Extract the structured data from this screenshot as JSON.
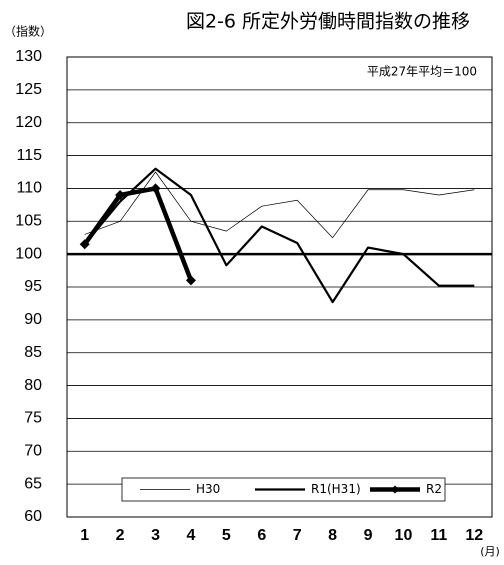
{
  "chart_data": {
    "type": "line",
    "title": "図2-6 所定外労働時間指数の推移",
    "y_label": "（指数）",
    "x_label": "(月)",
    "annotation": "平成27年平均＝100",
    "categories": [
      "1",
      "2",
      "3",
      "4",
      "5",
      "6",
      "7",
      "8",
      "9",
      "10",
      "11",
      "12"
    ],
    "series": [
      {
        "name": "H30",
        "color": "#000000",
        "width": 0.7,
        "marker": false,
        "values": [
          103,
          105,
          112.5,
          105,
          103.5,
          107.3,
          108.2,
          102.5,
          109.8,
          109.8,
          109,
          109.8
        ]
      },
      {
        "name": "R1(H31)",
        "color": "#000000",
        "width": 2.2,
        "marker": false,
        "values": [
          101.5,
          108,
          113,
          109,
          98.3,
          104.2,
          101.7,
          92.7,
          101,
          100,
          95.2,
          95.2
        ]
      },
      {
        "name": "R2",
        "color": "#000000",
        "width": 4.5,
        "marker": true,
        "values": [
          101.5,
          109,
          110,
          96,
          null,
          null,
          null,
          null,
          null,
          null,
          null,
          null
        ]
      }
    ],
    "ylim": [
      60,
      130
    ],
    "yticks": [
      60,
      65,
      70,
      75,
      80,
      85,
      90,
      95,
      100,
      105,
      110,
      115,
      120,
      125,
      130
    ],
    "grid": true,
    "baseline": 100,
    "legend": "bottom"
  }
}
